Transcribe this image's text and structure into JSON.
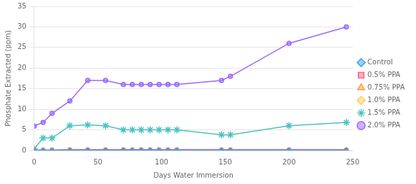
{
  "chart_data": {
    "type": "line",
    "xlabel": "Days Water Immersion",
    "ylabel": "Phosphate Extracted (ppm)",
    "x": [
      0,
      7,
      14,
      28,
      42,
      56,
      70,
      77,
      84,
      91,
      98,
      105,
      112,
      147,
      154,
      200,
      245
    ],
    "series": [
      {
        "name": "Control",
        "marker": "diamond",
        "values": [
          0.05,
          0.05,
          0.05,
          0.05,
          0.05,
          0.05,
          0.05,
          0.05,
          0.05,
          0.05,
          0.05,
          0.05,
          0.05,
          0.05,
          0.05,
          0.05,
          0.05
        ]
      },
      {
        "name": "0.5% PPA",
        "marker": "square",
        "values": [
          0.1,
          0.1,
          0.1,
          0.15,
          0.15,
          0.15,
          0.15,
          0.15,
          0.15,
          0.15,
          0.15,
          0.15,
          0.15,
          0.15,
          0.15,
          0.15,
          0.15
        ]
      },
      {
        "name": "0.75% PPA",
        "marker": "triangle",
        "values": [
          0.1,
          0.1,
          0.1,
          0.15,
          0.15,
          0.15,
          0.15,
          0.15,
          0.15,
          0.15,
          0.15,
          0.15,
          0.15,
          0.15,
          0.15,
          0.15,
          0.15
        ]
      },
      {
        "name": "1.0% PPA",
        "marker": "diamond",
        "values": [
          0.1,
          0.1,
          0.1,
          0.15,
          0.15,
          0.15,
          0.15,
          0.15,
          0.15,
          0.15,
          0.15,
          0.15,
          0.15,
          0.15,
          0.15,
          0.15,
          0.15
        ]
      },
      {
        "name": "1.5% PPA",
        "marker": "star",
        "values": [
          0.4,
          3.0,
          3.0,
          6.0,
          6.2,
          6.0,
          5.0,
          5.0,
          5.0,
          5.0,
          5.0,
          5.0,
          5.0,
          3.8,
          3.8,
          6.0,
          6.8
        ]
      },
      {
        "name": "2.0% PPA",
        "marker": "circle",
        "values": [
          5.9,
          6.8,
          9.0,
          12.0,
          17.0,
          17.0,
          16.0,
          16.0,
          16.0,
          16.0,
          16.0,
          16.0,
          16.0,
          17.0,
          18.0,
          26.0,
          30.0
        ]
      }
    ],
    "xlim": [
      0,
      250
    ],
    "xticks": [
      0,
      50,
      100,
      150,
      200,
      250
    ],
    "ylim": [
      0,
      35
    ],
    "yticks": [
      0,
      5,
      10,
      15,
      20,
      25,
      30,
      35
    ],
    "grid": true,
    "legend": "right"
  }
}
